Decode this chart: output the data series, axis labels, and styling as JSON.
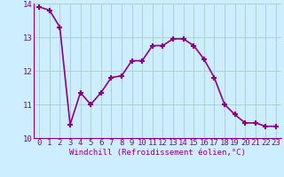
{
  "x": [
    0,
    1,
    2,
    3,
    4,
    5,
    6,
    7,
    8,
    9,
    10,
    11,
    12,
    13,
    14,
    15,
    16,
    17,
    18,
    19,
    20,
    21,
    22,
    23
  ],
  "y": [
    13.9,
    13.8,
    13.3,
    10.4,
    11.35,
    11.0,
    11.35,
    11.8,
    11.85,
    12.3,
    12.3,
    12.75,
    12.75,
    12.95,
    12.95,
    12.75,
    12.35,
    11.8,
    11.0,
    10.7,
    10.45,
    10.45,
    10.35,
    10.35
  ],
  "line_color": "#8B008B",
  "marker": "+",
  "marker_size": 5,
  "marker_lw": 1.5,
  "bg_color": "#cceeff",
  "grid_color": "#aacccc",
  "xlabel": "Windchill (Refroidissement éolien,°C)",
  "ylim": [
    10,
    14
  ],
  "xlim": [
    -0.5,
    23.5
  ],
  "yticks": [
    10,
    11,
    12,
    13,
    14
  ],
  "xticks": [
    0,
    1,
    2,
    3,
    4,
    5,
    6,
    7,
    8,
    9,
    10,
    11,
    12,
    13,
    14,
    15,
    16,
    17,
    18,
    19,
    20,
    21,
    22,
    23
  ],
  "xlabel_color": "#8B008B",
  "tick_color": "#8B008B",
  "xlabel_fontsize": 6.5,
  "tick_fontsize": 6.5,
  "spine_color": "#8B008B",
  "linewidth": 1.2
}
